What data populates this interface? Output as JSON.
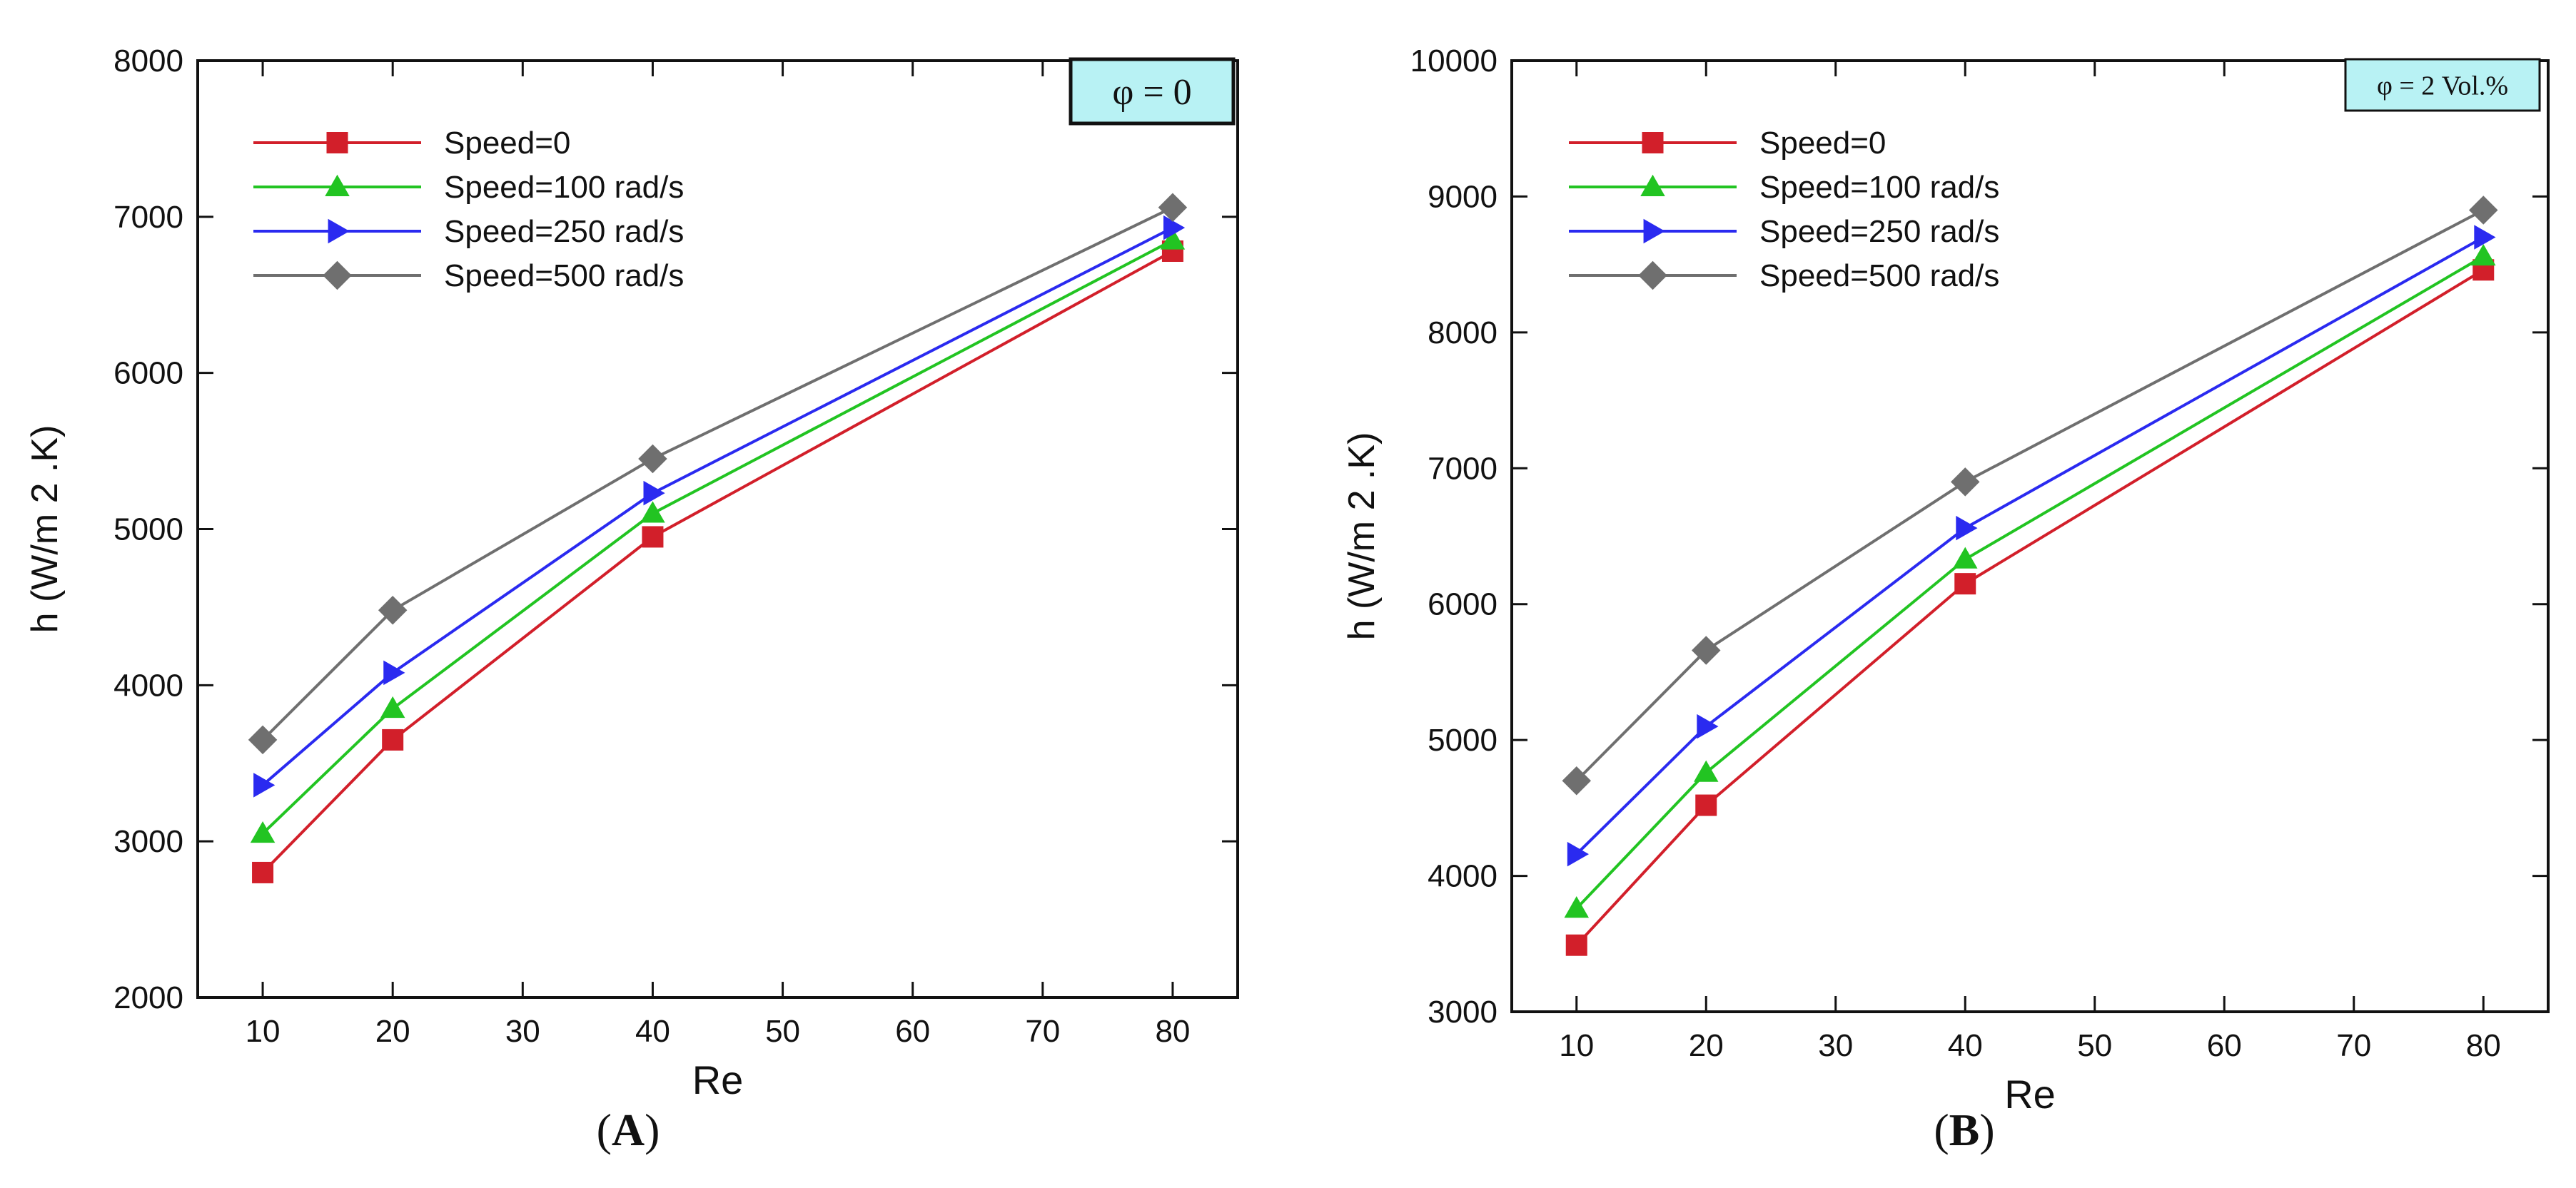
{
  "colors": {
    "speed0": "#d21f2a",
    "speed100": "#22c422",
    "speed250": "#2a2af0",
    "speed500": "#6f6f6f",
    "phi_box_fill": "#b8f2f4",
    "axis": "#111111"
  },
  "chart_data": [
    {
      "type": "line",
      "panel_label": "A",
      "title": "",
      "annotation": "φ = 0",
      "xlabel": "Re",
      "ylabel": "h (W/m 2 .K)",
      "xlim": [
        5,
        85
      ],
      "ylim": [
        2000,
        8000
      ],
      "xticks": [
        10,
        20,
        30,
        40,
        50,
        60,
        70,
        80
      ],
      "yticks": [
        2000,
        3000,
        4000,
        5000,
        6000,
        7000,
        8000
      ],
      "x": [
        10,
        20,
        40,
        80
      ],
      "legend_position": "top-left",
      "series": [
        {
          "name": "Speed=0",
          "marker": "square",
          "color_key": "speed0",
          "values": [
            2800,
            3650,
            4950,
            6780
          ]
        },
        {
          "name": "Speed=100 rad/s",
          "marker": "triangle-up",
          "color_key": "speed100",
          "values": [
            3050,
            3850,
            5100,
            6850
          ]
        },
        {
          "name": "Speed=250 rad/s",
          "marker": "triangle-right",
          "color_key": "speed250",
          "values": [
            3360,
            4080,
            5230,
            6930
          ]
        },
        {
          "name": "Speed=500 rad/s",
          "marker": "diamond",
          "color_key": "speed500",
          "values": [
            3650,
            4480,
            5450,
            7060
          ]
        }
      ]
    },
    {
      "type": "line",
      "panel_label": "B",
      "title": "",
      "annotation": "φ = 2 Vol.%",
      "xlabel": "Re",
      "ylabel": "h (W/m 2 .K)",
      "xlim": [
        5,
        85
      ],
      "ylim": [
        3000,
        10000
      ],
      "xticks": [
        10,
        20,
        30,
        40,
        50,
        60,
        70,
        80
      ],
      "yticks": [
        3000,
        4000,
        5000,
        6000,
        7000,
        8000,
        9000,
        10000
      ],
      "x": [
        10,
        20,
        40,
        80
      ],
      "legend_position": "top-left",
      "series": [
        {
          "name": "Speed=0",
          "marker": "square",
          "color_key": "speed0",
          "values": [
            3490,
            4520,
            6150,
            8460
          ]
        },
        {
          "name": "Speed=100 rad/s",
          "marker": "triangle-up",
          "color_key": "speed100",
          "values": [
            3760,
            4760,
            6330,
            8560
          ]
        },
        {
          "name": "Speed=250 rad/s",
          "marker": "triangle-right",
          "color_key": "speed250",
          "values": [
            4160,
            5100,
            6560,
            8700
          ]
        },
        {
          "name": "Speed=500 rad/s",
          "marker": "diamond",
          "color_key": "speed500",
          "values": [
            4700,
            5660,
            6900,
            8900
          ]
        }
      ]
    }
  ]
}
